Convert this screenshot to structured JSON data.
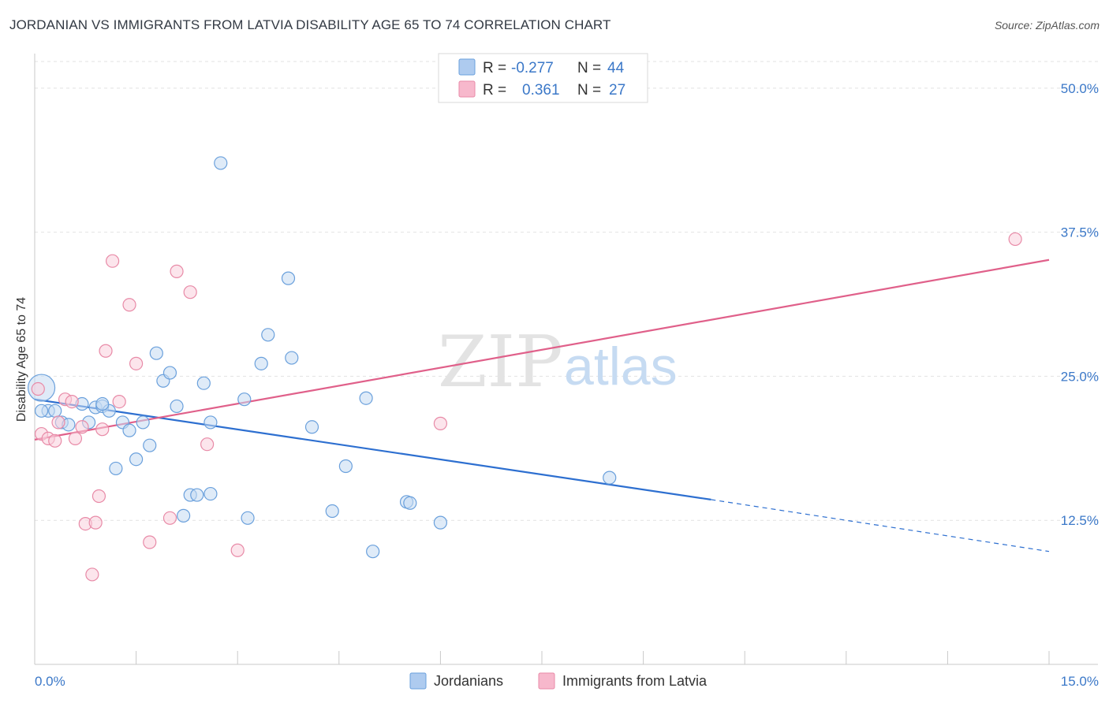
{
  "title": "JORDANIAN VS IMMIGRANTS FROM LATVIA DISABILITY AGE 65 TO 74 CORRELATION CHART",
  "source": "Source: ZipAtlas.com",
  "watermark": {
    "zip": "ZIP",
    "atlas": "atlas"
  },
  "legend": {
    "rows": [
      {
        "r_label": "R = ",
        "r_value": "-0.277",
        "n_label": "N = ",
        "n_value": "44",
        "color": "#aecbef"
      },
      {
        "r_label": "R = ",
        "r_value": "0.361",
        "n_label": "N = ",
        "n_value": "27",
        "color": "#f7b8cc"
      }
    ]
  },
  "chart_data": {
    "type": "scatter",
    "ylabel": "Disability Age 65 to 74",
    "xlim": [
      0,
      15
    ],
    "ylim": [
      0,
      53
    ],
    "x_tick_labels": [
      "0.0%",
      "15.0%"
    ],
    "y_ticks": [
      12.5,
      25.0,
      37.5,
      50.0
    ],
    "y_tick_labels": [
      "12.5%",
      "25.0%",
      "37.5%",
      "50.0%"
    ],
    "grid": true,
    "series": [
      {
        "name": "Jordanians",
        "color": "#6aa0dc",
        "fill": "#c5daf3",
        "trend_color": "#2d6fd0",
        "trend": {
          "x0": 0,
          "y0": 23.0,
          "x1": 10.0,
          "y1": 14.3,
          "x_dash_end": 15.0,
          "y_dash_end": 9.8
        },
        "points": [
          [
            0.1,
            24.0
          ],
          [
            0.2,
            22.0
          ],
          [
            0.3,
            22.0
          ],
          [
            0.4,
            21.0
          ],
          [
            0.7,
            22.6
          ],
          [
            0.8,
            21.0
          ],
          [
            0.9,
            22.3
          ],
          [
            1.0,
            22.4
          ],
          [
            1.1,
            22.0
          ],
          [
            1.2,
            17.0
          ],
          [
            1.3,
            21.0
          ],
          [
            1.4,
            20.3
          ],
          [
            1.5,
            17.8
          ],
          [
            1.6,
            21.0
          ],
          [
            1.7,
            19.0
          ],
          [
            1.8,
            27.0
          ],
          [
            1.9,
            24.6
          ],
          [
            2.0,
            25.3
          ],
          [
            2.1,
            22.4
          ],
          [
            2.2,
            12.9
          ],
          [
            2.3,
            14.7
          ],
          [
            2.4,
            14.7
          ],
          [
            2.5,
            24.4
          ],
          [
            2.6,
            14.8
          ],
          [
            2.6,
            21.0
          ],
          [
            2.75,
            43.5
          ],
          [
            3.1,
            23.0
          ],
          [
            3.15,
            12.7
          ],
          [
            3.35,
            26.1
          ],
          [
            3.45,
            28.6
          ],
          [
            3.75,
            33.5
          ],
          [
            3.8,
            26.6
          ],
          [
            4.1,
            20.6
          ],
          [
            4.4,
            13.3
          ],
          [
            4.6,
            17.2
          ],
          [
            4.9,
            23.1
          ],
          [
            5.0,
            9.8
          ],
          [
            5.5,
            14.1
          ],
          [
            5.55,
            14.0
          ],
          [
            6.0,
            12.3
          ],
          [
            8.5,
            16.2
          ],
          [
            0.1,
            22.0
          ],
          [
            0.5,
            20.8
          ],
          [
            1.0,
            22.6
          ]
        ]
      },
      {
        "name": "Immigrants from Latvia",
        "color": "#e88aa7",
        "fill": "#f9cfdc",
        "trend_color": "#e0608a",
        "trend": {
          "x0": 0,
          "y0": 19.5,
          "x1": 15.0,
          "y1": 35.1
        },
        "points": [
          [
            0.1,
            20.0
          ],
          [
            0.2,
            19.6
          ],
          [
            0.3,
            19.4
          ],
          [
            0.35,
            21.0
          ],
          [
            0.45,
            23.0
          ],
          [
            0.55,
            22.8
          ],
          [
            0.6,
            19.6
          ],
          [
            0.7,
            20.6
          ],
          [
            0.75,
            12.2
          ],
          [
            0.85,
            7.8
          ],
          [
            0.95,
            14.6
          ],
          [
            1.0,
            20.4
          ],
          [
            1.05,
            27.2
          ],
          [
            1.15,
            35.0
          ],
          [
            1.25,
            22.8
          ],
          [
            1.4,
            31.2
          ],
          [
            1.5,
            26.1
          ],
          [
            1.7,
            10.6
          ],
          [
            2.0,
            12.7
          ],
          [
            2.1,
            34.1
          ],
          [
            2.3,
            32.3
          ],
          [
            2.55,
            19.1
          ],
          [
            3.0,
            9.9
          ],
          [
            6.0,
            20.9
          ],
          [
            14.5,
            36.9
          ],
          [
            0.05,
            23.9
          ],
          [
            0.9,
            12.3
          ]
        ]
      }
    ]
  },
  "bottom_legend": [
    {
      "label": "Jordanians",
      "color": "#aecbef"
    },
    {
      "label": "Immigrants from Latvia",
      "color": "#f7b8cc"
    }
  ]
}
